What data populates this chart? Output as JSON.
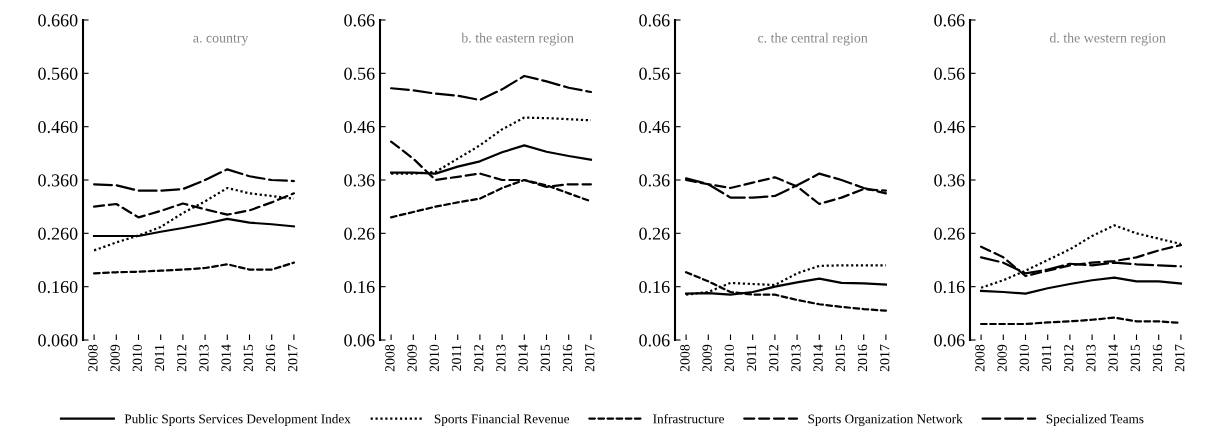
{
  "chart_data": [
    {
      "type": "line",
      "title": "a. country",
      "categories": [
        "2008",
        "2009",
        "2010",
        "2011",
        "2012",
        "2013",
        "2014",
        "2015",
        "2016",
        "2017"
      ],
      "ylim": [
        0.06,
        0.66
      ],
      "yticks": [
        {
          "value": 0.06,
          "label": "0.060"
        },
        {
          "value": 0.16,
          "label": "0.160"
        },
        {
          "value": 0.26,
          "label": "0.260"
        },
        {
          "value": 0.36,
          "label": "0.360"
        },
        {
          "value": 0.46,
          "label": "0.460"
        },
        {
          "value": 0.56,
          "label": "0.560"
        },
        {
          "value": 0.66,
          "label": "0.660"
        }
      ],
      "grid": false,
      "legend": "bottom",
      "marker": "none",
      "series": [
        {
          "name": "Public Sports Services Development Index",
          "color": "#000000",
          "line_style": "solid",
          "values": [
            0.255,
            0.255,
            0.255,
            0.263,
            0.27,
            0.278,
            0.287,
            0.28,
            0.277,
            0.273
          ]
        },
        {
          "name": "Sports Financial Revenue",
          "color": "#000000",
          "line_style": "dotted",
          "values": [
            0.228,
            0.243,
            0.256,
            0.272,
            0.298,
            0.32,
            0.345,
            0.335,
            0.33,
            0.325
          ]
        },
        {
          "name": "Infrastructure",
          "color": "#000000",
          "line_style": "dashed",
          "values": [
            0.185,
            0.187,
            0.188,
            0.19,
            0.192,
            0.195,
            0.202,
            0.192,
            0.192,
            0.205
          ]
        },
        {
          "name": "Sports Organization Network",
          "color": "#000000",
          "line_style": "dashed",
          "values": [
            0.31,
            0.315,
            0.29,
            0.302,
            0.316,
            0.305,
            0.295,
            0.303,
            0.318,
            0.335
          ]
        },
        {
          "name": "Specialized Teams",
          "color": "#000000",
          "line_style": "dashed",
          "values": [
            0.352,
            0.35,
            0.34,
            0.34,
            0.343,
            0.36,
            0.38,
            0.367,
            0.36,
            0.358
          ]
        }
      ]
    },
    {
      "type": "line",
      "title": "b. the eastern region",
      "categories": [
        "2008",
        "2009",
        "2010",
        "2011",
        "2012",
        "2013",
        "2014",
        "2015",
        "2016",
        "2017"
      ],
      "ylim": [
        0.06,
        0.66
      ],
      "yticks": [
        0.06,
        0.16,
        0.26,
        0.36,
        0.46,
        0.56,
        0.66
      ],
      "grid": false,
      "marker": "none",
      "series": [
        {
          "color": "#000000",
          "line_style": "solid",
          "values": [
            0.374,
            0.374,
            0.372,
            0.385,
            0.395,
            0.412,
            0.425,
            0.413,
            0.405,
            0.398
          ]
        },
        {
          "color": "#000000",
          "line_style": "dotted",
          "values": [
            0.372,
            0.372,
            0.375,
            0.4,
            0.425,
            0.455,
            0.477,
            0.476,
            0.474,
            0.472
          ]
        },
        {
          "color": "#000000",
          "line_style": "dashed",
          "values": [
            0.29,
            0.3,
            0.31,
            0.318,
            0.325,
            0.345,
            0.36,
            0.35,
            0.335,
            0.32
          ]
        },
        {
          "color": "#000000",
          "line_style": "dashed",
          "values": [
            0.432,
            0.4,
            0.36,
            0.366,
            0.372,
            0.36,
            0.36,
            0.347,
            0.352,
            0.352
          ]
        },
        {
          "color": "#000000",
          "line_style": "dashed",
          "values": [
            0.532,
            0.528,
            0.522,
            0.518,
            0.51,
            0.53,
            0.555,
            0.545,
            0.533,
            0.525
          ]
        }
      ]
    },
    {
      "type": "line",
      "title": "c. the central region",
      "categories": [
        "2008",
        "2009",
        "2010",
        "2011",
        "2012",
        "2013",
        "2014",
        "2015",
        "2016",
        "2017"
      ],
      "ylim": [
        0.06,
        0.66
      ],
      "yticks": [
        0.06,
        0.16,
        0.26,
        0.36,
        0.46,
        0.56,
        0.66
      ],
      "grid": false,
      "marker": "none",
      "series": [
        {
          "color": "#000000",
          "line_style": "solid",
          "values": [
            0.147,
            0.148,
            0.145,
            0.15,
            0.16,
            0.168,
            0.175,
            0.167,
            0.166,
            0.164
          ]
        },
        {
          "color": "#000000",
          "line_style": "dotted",
          "values": [
            0.145,
            0.15,
            0.167,
            0.165,
            0.163,
            0.185,
            0.199,
            0.2,
            0.2,
            0.2
          ]
        },
        {
          "color": "#000000",
          "line_style": "dashed",
          "values": [
            0.187,
            0.17,
            0.15,
            0.145,
            0.145,
            0.135,
            0.127,
            0.122,
            0.118,
            0.115
          ]
        },
        {
          "color": "#000000",
          "line_style": "dashed",
          "values": [
            0.36,
            0.352,
            0.345,
            0.355,
            0.365,
            0.348,
            0.315,
            0.327,
            0.343,
            0.34
          ]
        },
        {
          "color": "#000000",
          "line_style": "dashed",
          "values": [
            0.363,
            0.352,
            0.327,
            0.327,
            0.33,
            0.35,
            0.372,
            0.36,
            0.345,
            0.335
          ]
        }
      ]
    },
    {
      "type": "line",
      "title": "d. the western region",
      "categories": [
        "2008",
        "2009",
        "2010",
        "2011",
        "2012",
        "2013",
        "2014",
        "2015",
        "2016",
        "2017"
      ],
      "ylim": [
        0.06,
        0.66
      ],
      "yticks": [
        0.06,
        0.16,
        0.26,
        0.36,
        0.46,
        0.56,
        0.66
      ],
      "grid": false,
      "marker": "none",
      "series": [
        {
          "color": "#000000",
          "line_style": "solid",
          "values": [
            0.152,
            0.15,
            0.147,
            0.157,
            0.165,
            0.172,
            0.177,
            0.17,
            0.17,
            0.166
          ]
        },
        {
          "color": "#000000",
          "line_style": "dotted",
          "values": [
            0.158,
            0.172,
            0.19,
            0.21,
            0.23,
            0.255,
            0.275,
            0.26,
            0.25,
            0.24
          ]
        },
        {
          "color": "#000000",
          "line_style": "dashed",
          "values": [
            0.09,
            0.09,
            0.09,
            0.093,
            0.095,
            0.098,
            0.102,
            0.095,
            0.095,
            0.092
          ]
        },
        {
          "color": "#000000",
          "line_style": "dashed",
          "values": [
            0.235,
            0.215,
            0.18,
            0.19,
            0.2,
            0.205,
            0.208,
            0.215,
            0.228,
            0.238
          ]
        },
        {
          "color": "#000000",
          "line_style": "dashed",
          "values": [
            0.215,
            0.205,
            0.185,
            0.192,
            0.203,
            0.2,
            0.205,
            0.202,
            0.2,
            0.198
          ]
        }
      ]
    }
  ]
}
